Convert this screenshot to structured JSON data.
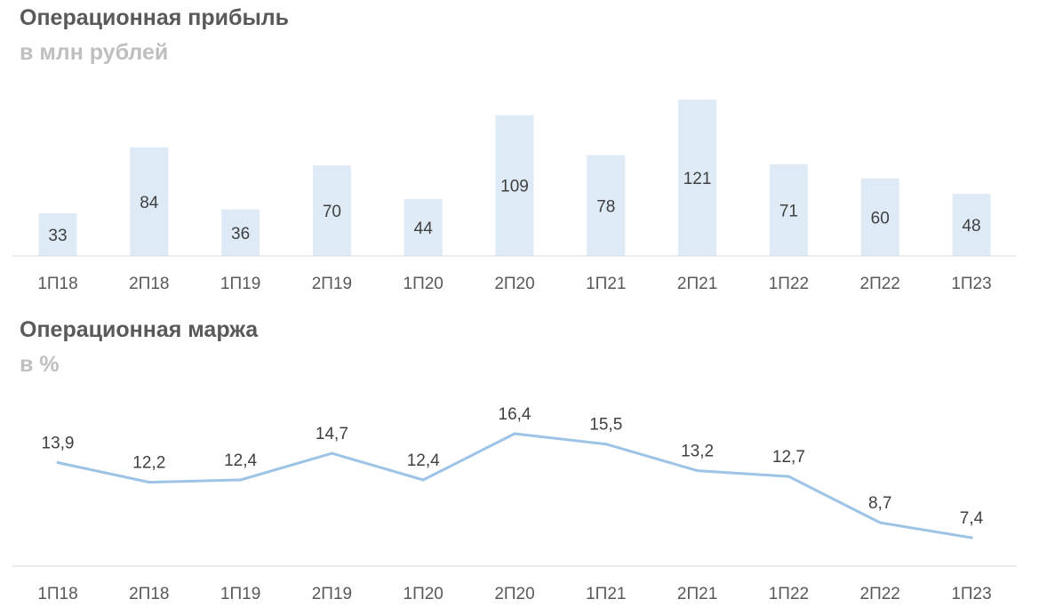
{
  "colors": {
    "bar": "#deebf7",
    "line": "#9dc3e6",
    "axis": "#d9d9d9"
  },
  "chart_data": [
    {
      "type": "bar",
      "title": "Операционная прибыль",
      "subtitle": "в млн рублей",
      "categories": [
        "1П18",
        "2П18",
        "1П19",
        "2П19",
        "1П20",
        "2П20",
        "1П21",
        "2П21",
        "1П22",
        "2П22",
        "1П23"
      ],
      "values": [
        33,
        84,
        36,
        70,
        44,
        109,
        78,
        121,
        71,
        60,
        48
      ],
      "ylim": [
        0,
        121
      ],
      "grid": false,
      "legend": "none"
    },
    {
      "type": "line",
      "title": "Операционная маржа",
      "subtitle": "в %",
      "categories": [
        "1П18",
        "2П18",
        "1П19",
        "2П19",
        "1П20",
        "2П20",
        "1П21",
        "2П21",
        "1П22",
        "2П22",
        "1П23"
      ],
      "labels": [
        "13,9",
        "12,2",
        "12,4",
        "14,7",
        "12,4",
        "16,4",
        "15,5",
        "13,2",
        "12,7",
        "8,7",
        "7,4"
      ],
      "values": [
        13.9,
        12.2,
        12.4,
        14.7,
        12.4,
        16.4,
        15.5,
        13.2,
        12.7,
        8.7,
        7.4
      ],
      "ylim": [
        7.4,
        16.4
      ],
      "grid": false,
      "legend": "none"
    }
  ]
}
